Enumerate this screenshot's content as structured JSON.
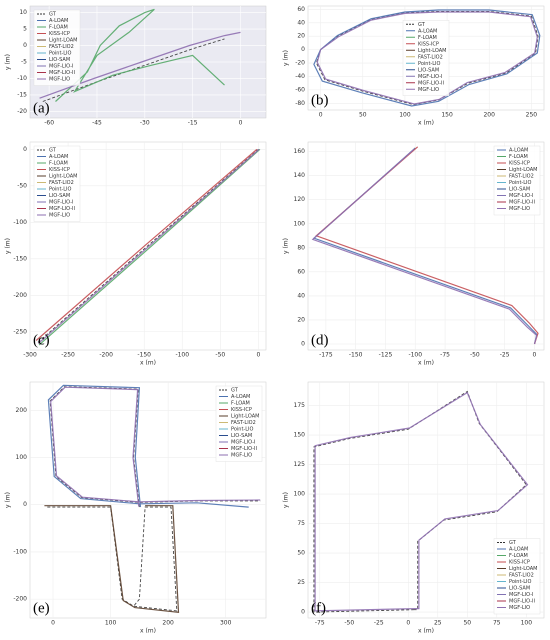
{
  "chart_data": [
    {
      "type": "line",
      "label": "(a)",
      "ylabel": "y (m)",
      "background": "#eaeaf2",
      "grid": true,
      "legend_corner": "upper-left",
      "xlim": [
        -66,
        8
      ],
      "ylim": [
        -22,
        12
      ],
      "xticks": [
        -60,
        -45,
        -30,
        -15,
        0
      ],
      "yticks": [
        -20,
        -15,
        -10,
        -5,
        0,
        5,
        10
      ],
      "series": [
        {
          "name": "GT",
          "color": "#333333",
          "dash": true,
          "x": [
            -62,
            -45,
            -30,
            -15,
            -5
          ],
          "y": [
            -17,
            -11,
            -6,
            -1,
            2
          ]
        },
        {
          "name": "A-LOAM",
          "color": "#4c72b0"
        },
        {
          "name": "F-LOAM",
          "color": "#55a868",
          "x": [
            -58,
            -48,
            -44,
            -38,
            -30,
            -27,
            -35,
            -45,
            -52,
            -40,
            -28,
            -15,
            -5
          ],
          "y": [
            -17,
            -8,
            0,
            6,
            10,
            11,
            4,
            -3,
            -14,
            -9,
            -6,
            -3,
            -12
          ]
        },
        {
          "name": "KISS-ICP",
          "color": "#c44e52"
        },
        {
          "name": "Light-LOAM",
          "color": "#5a3e2b"
        },
        {
          "name": "FAST-LIO2",
          "color": "#ccb974"
        },
        {
          "name": "Point-LIO",
          "color": "#64b5cd"
        },
        {
          "name": "LIO-SAM",
          "color": "#2a4d8f"
        },
        {
          "name": "MGF-LIO-I",
          "color": "#8172b3"
        },
        {
          "name": "MGF-LIO-II",
          "color": "#a8324a"
        },
        {
          "name": "MGF-LIO",
          "color": "#8e6fb0",
          "x": [
            -63,
            -46,
            -31,
            -16,
            -5,
            0
          ],
          "y": [
            -16,
            -10,
            -5,
            0,
            3,
            4
          ]
        }
      ]
    },
    {
      "type": "line",
      "label": "(b)",
      "xlabel": "x (m)",
      "ylabel": "y (m)",
      "background": "#ffffff",
      "grid": true,
      "legend_corner": "center",
      "xlim": [
        -15,
        265
      ],
      "ylim": [
        -90,
        65
      ],
      "xticks": [
        0,
        50,
        100,
        150,
        200,
        250
      ],
      "yticks": [
        -80,
        -60,
        -40,
        -20,
        0,
        20,
        40,
        60
      ],
      "series": [
        {
          "name": "GT",
          "color": "#333333",
          "dash": true,
          "x": [
            0,
            -5,
            5,
            50,
            110,
            140,
            175,
            220,
            255,
            258,
            250,
            200,
            140,
            100,
            60,
            20,
            0
          ],
          "y": [
            0,
            -20,
            -45,
            -62,
            -82,
            -75,
            -50,
            -35,
            -5,
            20,
            50,
            57,
            57,
            55,
            45,
            20,
            0
          ]
        },
        {
          "name": "A-LOAM",
          "color": "#4c72b0",
          "x": [
            0,
            -8,
            2,
            48,
            108,
            140,
            176,
            221,
            257,
            260,
            251,
            200,
            140,
            100,
            60,
            20,
            0
          ],
          "y": [
            0,
            -22,
            -47,
            -64,
            -84,
            -77,
            -52,
            -36,
            -5,
            21,
            52,
            59,
            59,
            56,
            46,
            21,
            0
          ]
        },
        {
          "name": "F-LOAM",
          "color": "#55a868"
        },
        {
          "name": "KISS-ICP",
          "color": "#c44e52"
        },
        {
          "name": "Light-LOAM",
          "color": "#5a3e2b"
        },
        {
          "name": "FAST-LIO2",
          "color": "#ccb974"
        },
        {
          "name": "Point-LIO",
          "color": "#64b5cd"
        },
        {
          "name": "LIO-SAM",
          "color": "#2a4d8f"
        },
        {
          "name": "MGF-LIO-I",
          "color": "#8172b3"
        },
        {
          "name": "MGF-LIO-II",
          "color": "#a8324a"
        },
        {
          "name": "MGF-LIO",
          "color": "#8e6fb0",
          "x": [
            0,
            -4,
            6,
            51,
            111,
            141,
            174,
            219,
            254,
            257,
            249,
            200,
            140,
            100,
            60,
            21,
            0
          ],
          "y": [
            0,
            -19,
            -44,
            -61,
            -81,
            -74,
            -49,
            -34,
            -5,
            19,
            49,
            56,
            56,
            54,
            44,
            19,
            0
          ]
        }
      ]
    },
    {
      "type": "line",
      "label": "(c)",
      "xlabel": "x (m)",
      "ylabel": "y (m)",
      "background": "#ffffff",
      "grid": true,
      "legend_corner": "upper-left",
      "xlim": [
        -300,
        10
      ],
      "ylim": [
        -275,
        10
      ],
      "xticks": [
        -300,
        -250,
        -200,
        -150,
        -100,
        -50,
        0
      ],
      "yticks": [
        -250,
        -200,
        -150,
        -100,
        -50,
        0
      ],
      "series": [
        {
          "name": "GT",
          "color": "#333333",
          "dash": true,
          "x": [
            0,
            -145,
            -290
          ],
          "y": [
            0,
            -132,
            -265
          ]
        },
        {
          "name": "A-LOAM",
          "color": "#4c72b0"
        },
        {
          "name": "F-LOAM",
          "color": "#55a868",
          "x": [
            2,
            -143,
            -288
          ],
          "y": [
            0,
            -135,
            -268
          ]
        },
        {
          "name": "KISS-ICP",
          "color": "#c44e52",
          "x": [
            -2,
            -147,
            -292
          ],
          "y": [
            0,
            -130,
            -262
          ]
        },
        {
          "name": "Light-LOAM",
          "color": "#5a3e2b"
        },
        {
          "name": "FAST-LIO2",
          "color": "#ccb974"
        },
        {
          "name": "Point-LIO",
          "color": "#64b5cd"
        },
        {
          "name": "LIO-SAM",
          "color": "#2a4d8f"
        },
        {
          "name": "MGF-LIO-I",
          "color": "#8172b3"
        },
        {
          "name": "MGF-LIO-II",
          "color": "#a8324a"
        },
        {
          "name": "MGF-LIO",
          "color": "#8e6fb0",
          "x": [
            1,
            -144,
            -289
          ],
          "y": [
            0,
            -133,
            -266
          ]
        }
      ]
    },
    {
      "type": "line",
      "label": "(d)",
      "xlabel": "x (m)",
      "ylabel": "y (m)",
      "background": "#ffffff",
      "grid": true,
      "legend_corner": "upper-right",
      "xlim": [
        -190,
        8
      ],
      "ylim": [
        -5,
        168
      ],
      "xticks": [
        -175,
        -150,
        -125,
        -100,
        -75,
        -50,
        -25,
        0
      ],
      "yticks": [
        0,
        20,
        40,
        60,
        80,
        100,
        120,
        140,
        160
      ],
      "series": [
        {
          "name": "A-LOAM",
          "color": "#4c72b0",
          "x": [
            0,
            2,
            -5,
            -20,
            -185,
            -100
          ],
          "y": [
            0,
            8,
            15,
            30,
            88,
            163
          ]
        },
        {
          "name": "F-LOAM",
          "color": "#55a868"
        },
        {
          "name": "KISS-ICP",
          "color": "#c44e52",
          "x": [
            0,
            3,
            -4,
            -19,
            -183,
            -98
          ],
          "y": [
            0,
            9,
            17,
            32,
            90,
            164
          ]
        },
        {
          "name": "Light-LOAM",
          "color": "#5a3e2b"
        },
        {
          "name": "FAST-LIO2",
          "color": "#ccb974"
        },
        {
          "name": "Point-LIO",
          "color": "#64b5cd"
        },
        {
          "name": "LIO-SAM",
          "color": "#2a4d8f"
        },
        {
          "name": "MGF-LIO-I",
          "color": "#8172b3"
        },
        {
          "name": "MGF-LIO-II",
          "color": "#a8324a"
        },
        {
          "name": "MGF-LIO",
          "color": "#8e6fb0",
          "x": [
            0,
            2,
            -6,
            -21,
            -186,
            -101
          ],
          "y": [
            0,
            7,
            14,
            29,
            87,
            162
          ]
        }
      ]
    },
    {
      "type": "line",
      "label": "(e)",
      "xlabel": "x (m)",
      "ylabel": "y (m)",
      "background": "#ffffff",
      "grid": true,
      "legend_corner": "upper-right",
      "xlim": [
        -40,
        370
      ],
      "ylim": [
        -240,
        260
      ],
      "xticks": [
        0,
        100,
        200,
        300
      ],
      "yticks": [
        -200,
        -100,
        0,
        100,
        200
      ],
      "series": [
        {
          "name": "GT",
          "color": "#333333",
          "dash": true,
          "x": [
            150,
            140,
            148,
            20,
            -5,
            0,
            5,
            50,
            150,
            250,
            360,
            null,
            -10,
            100,
            120,
            140,
            215,
            205,
            160,
            150,
            140
          ],
          "y": [
            -5,
            100,
            245,
            250,
            220,
            140,
            60,
            15,
            5,
            8,
            8,
            null,
            -5,
            -5,
            -200,
            -215,
            -225,
            -5,
            -5,
            -200,
            -215
          ]
        },
        {
          "name": "A-LOAM",
          "color": "#4c72b0",
          "x": [
            152,
            143,
            150,
            18,
            -8,
            -3,
            2,
            48,
            150,
            250,
            340
          ],
          "y": [
            -5,
            100,
            248,
            253,
            222,
            140,
            60,
            13,
            2,
            4,
            -5
          ]
        },
        {
          "name": "F-LOAM",
          "color": "#55a868"
        },
        {
          "name": "KISS-ICP",
          "color": "#c44e52"
        },
        {
          "name": "Light-LOAM",
          "color": "#5a3e2b",
          "x": [
            -15,
            100,
            122,
            142,
            218,
            208,
            160
          ],
          "y": [
            -2,
            -2,
            -203,
            -218,
            -228,
            -2,
            -2
          ]
        },
        {
          "name": "FAST-LIO2",
          "color": "#ccb974"
        },
        {
          "name": "Point-LIO",
          "color": "#64b5cd"
        },
        {
          "name": "LIO-SAM",
          "color": "#2a4d8f"
        },
        {
          "name": "MGF-LIO-I",
          "color": "#8172b3"
        },
        {
          "name": "MGF-LIO-II",
          "color": "#a8324a"
        },
        {
          "name": "MGF-LIO",
          "color": "#8e6fb0",
          "x": [
            149,
            139,
            147,
            21,
            -4,
            1,
            6,
            51,
            150,
            250,
            360
          ],
          "y": [
            -4,
            100,
            244,
            249,
            219,
            140,
            61,
            16,
            6,
            9,
            10
          ]
        }
      ]
    },
    {
      "type": "line",
      "label": "(f)",
      "xlabel": "x (m)",
      "ylabel": "y (m)",
      "background": "#ffffff",
      "grid": true,
      "legend_corner": "lower-right",
      "xlim": [
        -85,
        115
      ],
      "ylim": [
        -5,
        195
      ],
      "xticks": [
        -75,
        -50,
        -25,
        0,
        25,
        50,
        75,
        100
      ],
      "yticks": [
        0,
        25,
        50,
        75,
        100,
        125,
        150,
        175
      ],
      "series": [
        {
          "name": "GT",
          "color": "#333333",
          "dash": true,
          "x": [
            5,
            -80,
            -80,
            -50,
            0,
            50,
            60,
            100,
            75,
            30,
            8,
            8,
            5
          ],
          "y": [
            2,
            0,
            140,
            147,
            155,
            187,
            160,
            108,
            85,
            78,
            60,
            2,
            2
          ]
        },
        {
          "name": "A-LOAM",
          "color": "#4c72b0"
        },
        {
          "name": "F-LOAM",
          "color": "#55a868"
        },
        {
          "name": "KISS-ICP",
          "color": "#c44e52"
        },
        {
          "name": "Light-LOAM",
          "color": "#5a3e2b"
        },
        {
          "name": "FAST-LIO2",
          "color": "#ccb974"
        },
        {
          "name": "Point-LIO",
          "color": "#64b5cd"
        },
        {
          "name": "LIO-SAM",
          "color": "#2a4d8f"
        },
        {
          "name": "MGF-LIO-I",
          "color": "#8172b3"
        },
        {
          "name": "MGF-LIO-II",
          "color": "#a8324a"
        },
        {
          "name": "MGF-LIO",
          "color": "#8e6fb0",
          "x": [
            6,
            -79,
            -79,
            -49,
            1,
            50,
            61,
            101,
            76,
            31,
            9,
            9,
            6
          ],
          "y": [
            3,
            1,
            141,
            148,
            156,
            186,
            159,
            108,
            86,
            79,
            61,
            3,
            3
          ]
        }
      ]
    }
  ]
}
